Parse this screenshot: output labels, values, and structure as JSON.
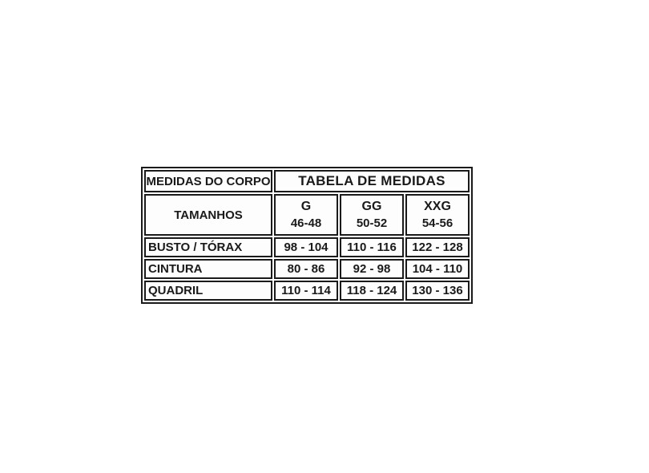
{
  "chart_data": {
    "type": "table",
    "title": "TABELA DE MEDIDAS",
    "corner_label": "MEDIDAS DO CORPO",
    "row_header_label": "TAMANHOS",
    "columns": [
      {
        "size": "G",
        "range": "46-48"
      },
      {
        "size": "GG",
        "range": "50-52"
      },
      {
        "size": "XXG",
        "range": "54-56"
      }
    ],
    "rows": [
      {
        "label": "BUSTO / TÓRAX",
        "values": [
          "98 - 104",
          "110 - 116",
          "122 - 128"
        ]
      },
      {
        "label": "CINTURA",
        "values": [
          "80 - 86",
          "92 - 98",
          "104 - 110"
        ]
      },
      {
        "label": "QUADRIL",
        "values": [
          "110 - 114",
          "118 - 124",
          "130 - 136"
        ]
      }
    ],
    "layout": {
      "grid": "on",
      "units_implied": "cm"
    }
  },
  "colors": {
    "border": "#1a1a1a",
    "text": "#1a1a1a",
    "background": "#ffffff",
    "cell_background": "#fdfdfd"
  }
}
